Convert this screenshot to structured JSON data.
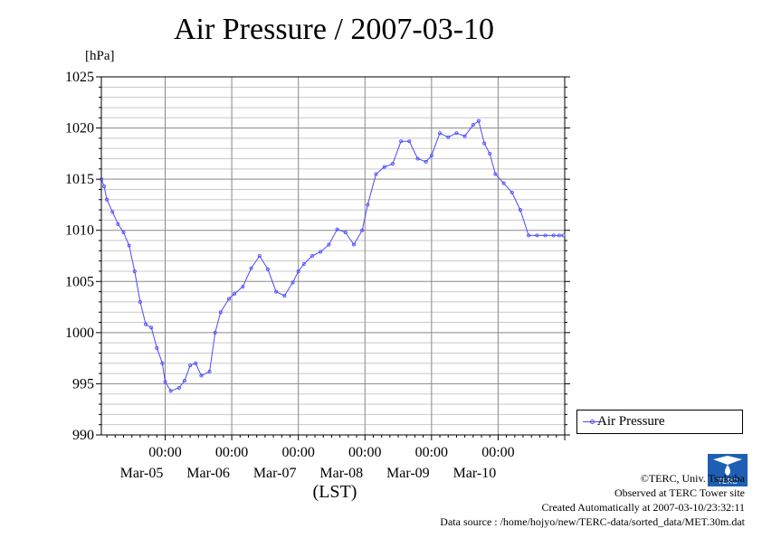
{
  "chart_data": {
    "type": "line",
    "title": "Air Pressure / 2007-03-10",
    "ylabel": "[hPa]",
    "xlabel": "(LST)",
    "ylim": [
      990,
      1025
    ],
    "yticks": [
      990,
      995,
      1000,
      1005,
      1010,
      1015,
      1020,
      1025
    ],
    "xlim": [
      "2007-03-04 01:00",
      "2007-03-11 00:00"
    ],
    "x_tick_labels": [
      {
        "time": "00:00",
        "date": "Mar-05"
      },
      {
        "time": "00:00",
        "date": "Mar-06"
      },
      {
        "time": "00:00",
        "date": "Mar-07"
      },
      {
        "time": "00:00",
        "date": "Mar-08"
      },
      {
        "time": "00:00",
        "date": "Mar-09"
      },
      {
        "time": "00:00",
        "date": "Mar-10"
      }
    ],
    "grid": true,
    "legend_position": "bottom-right, outside plot",
    "series": [
      {
        "name": "Air Pressure",
        "color": "#4b4bff",
        "marker": "small open circle",
        "x": [
          "2007-03-04 01:00",
          "2007-03-04 02:00",
          "2007-03-04 03:00",
          "2007-03-04 05:00",
          "2007-03-04 07:00",
          "2007-03-04 09:00",
          "2007-03-04 11:00",
          "2007-03-04 13:00",
          "2007-03-04 15:00",
          "2007-03-04 17:00",
          "2007-03-04 19:00",
          "2007-03-04 21:00",
          "2007-03-04 23:00",
          "2007-03-05 00:00",
          "2007-03-05 02:00",
          "2007-03-05 05:00",
          "2007-03-05 07:00",
          "2007-03-05 09:00",
          "2007-03-05 11:00",
          "2007-03-05 13:00",
          "2007-03-05 16:00",
          "2007-03-05 18:00",
          "2007-03-05 20:00",
          "2007-03-05 23:00",
          "2007-03-06 01:00",
          "2007-03-06 04:00",
          "2007-03-06 07:00",
          "2007-03-06 10:00",
          "2007-03-06 13:00",
          "2007-03-06 16:00",
          "2007-03-06 19:00",
          "2007-03-06 22:00",
          "2007-03-07 00:00",
          "2007-03-07 02:00",
          "2007-03-07 05:00",
          "2007-03-07 08:00",
          "2007-03-07 11:00",
          "2007-03-07 14:00",
          "2007-03-07 17:00",
          "2007-03-07 20:00",
          "2007-03-07 23:00",
          "2007-03-08 01:00",
          "2007-03-08 04:00",
          "2007-03-08 07:00",
          "2007-03-08 10:00",
          "2007-03-08 13:00",
          "2007-03-08 16:00",
          "2007-03-08 19:00",
          "2007-03-08 22:00",
          "2007-03-09 00:00",
          "2007-03-09 03:00",
          "2007-03-09 06:00",
          "2007-03-09 09:00",
          "2007-03-09 12:00",
          "2007-03-09 15:00",
          "2007-03-09 17:00",
          "2007-03-09 19:00",
          "2007-03-09 21:00",
          "2007-03-09 23:00",
          "2007-03-10 02:00",
          "2007-03-10 05:00",
          "2007-03-10 08:00",
          "2007-03-10 11:00",
          "2007-03-10 14:00",
          "2007-03-10 17:00",
          "2007-03-10 20:00",
          "2007-03-10 22:00",
          "2007-03-10 23:30"
        ],
        "values": [
          1015.0,
          1014.3,
          1013.0,
          1011.8,
          1010.6,
          1009.8,
          1008.5,
          1006.0,
          1003.0,
          1000.8,
          1000.5,
          998.5,
          997.0,
          995.2,
          994.3,
          994.6,
          995.3,
          996.8,
          997.0,
          995.8,
          996.2,
          1000.0,
          1002.0,
          1003.3,
          1003.8,
          1004.5,
          1006.3,
          1007.5,
          1006.2,
          1004.0,
          1003.6,
          1004.9,
          1006.0,
          1006.7,
          1007.5,
          1007.9,
          1008.6,
          1010.1,
          1009.8,
          1008.6,
          1010.0,
          1012.5,
          1015.5,
          1016.2,
          1016.5,
          1018.7,
          1018.7,
          1017.0,
          1016.7,
          1017.3,
          1019.5,
          1019.1,
          1019.5,
          1019.2,
          1020.3,
          1020.7,
          1018.5,
          1017.5,
          1015.5,
          1014.6,
          1013.7,
          1012.0,
          1009.5,
          1009.5,
          1009.5,
          1009.5,
          1009.5,
          1009.5
        ]
      }
    ]
  },
  "legend": {
    "label": "Air Pressure"
  },
  "credits": {
    "line1": "©TERC, Univ. Tsukuba",
    "line2": "Observed at TERC Tower site",
    "line3": "Created Automatically at 2007-03-10/23:32:11",
    "line4": "Data source : /home/hojyo/new/TERC-data/sorted_data/MET.30m.dat"
  },
  "logo": {
    "text": "TERC",
    "color": "#1d5fb3"
  }
}
